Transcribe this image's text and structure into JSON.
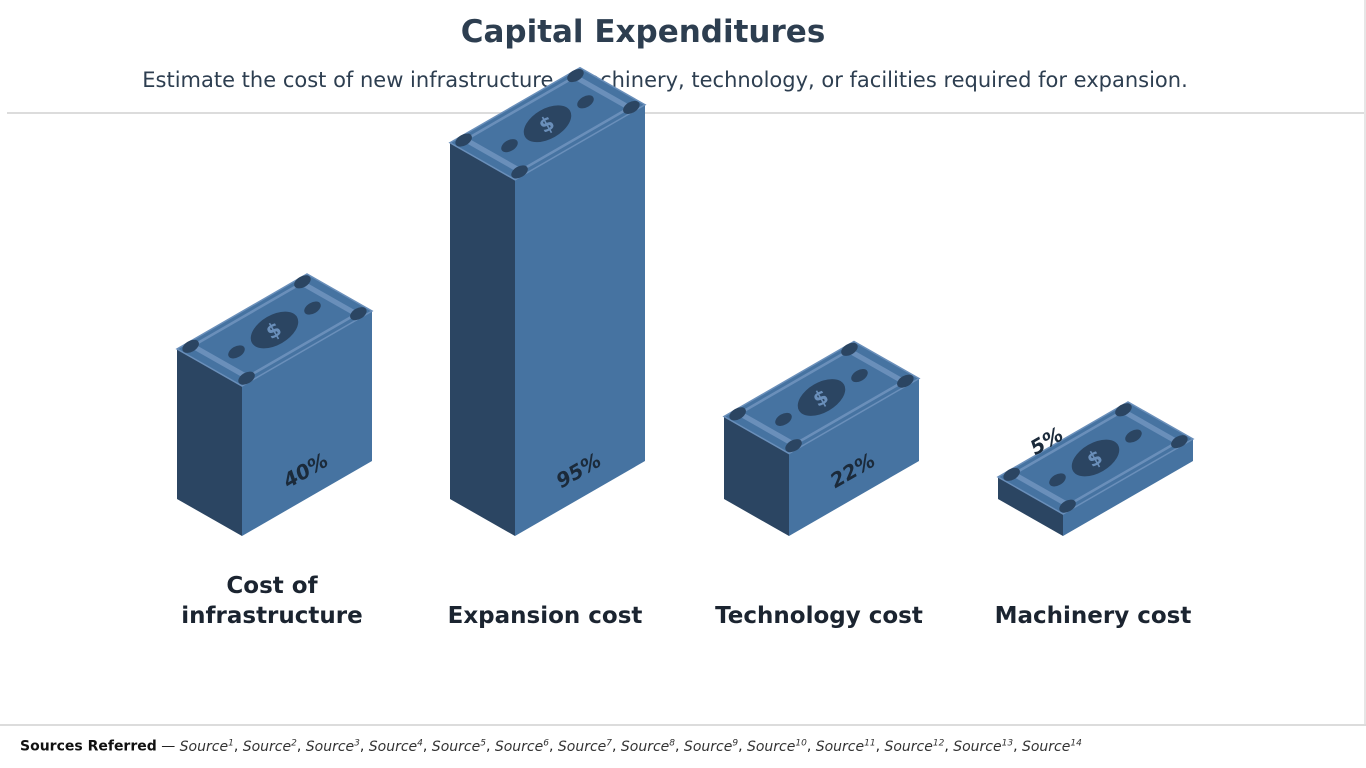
{
  "slide": {
    "title": "Capital Expenditures",
    "subtitle": "Estimate the cost of new infrastructure, machinery, technology, or facilities required for expansion."
  },
  "chart_data": {
    "type": "bar",
    "style": "isometric money-stack columns",
    "categories": [
      "Cost of infrastructure",
      "Expansion cost",
      "Technology cost",
      "Machinery cost"
    ],
    "values": [
      40,
      95,
      22,
      5
    ],
    "value_labels": [
      "40%",
      "95%",
      "22%",
      "5%"
    ],
    "unit": "%",
    "ylim": [
      0,
      100
    ],
    "grid": false,
    "legend": "none",
    "colors": {
      "front": "#4673a1",
      "side": "#2b4562",
      "top": "#4673a1",
      "bill_dark": "#2b4562",
      "bill_light": "#6a8fba",
      "label": "#1b2a3a"
    }
  },
  "footer": {
    "label": "Sources Referred",
    "separator": "—",
    "sources": [
      {
        "text": "Source",
        "num": "1"
      },
      {
        "text": "Source",
        "num": "2"
      },
      {
        "text": "Source",
        "num": "3"
      },
      {
        "text": "Source",
        "num": "4"
      },
      {
        "text": "Source",
        "num": "5"
      },
      {
        "text": "Source",
        "num": "6"
      },
      {
        "text": "Source",
        "num": "7"
      },
      {
        "text": "Source",
        "num": "8"
      },
      {
        "text": "Source",
        "num": "9"
      },
      {
        "text": "Source",
        "num": "10"
      },
      {
        "text": "Source",
        "num": "11"
      },
      {
        "text": "Source",
        "num": "12"
      },
      {
        "text": "Source",
        "num": "13"
      },
      {
        "text": "Source",
        "num": "14"
      }
    ]
  }
}
